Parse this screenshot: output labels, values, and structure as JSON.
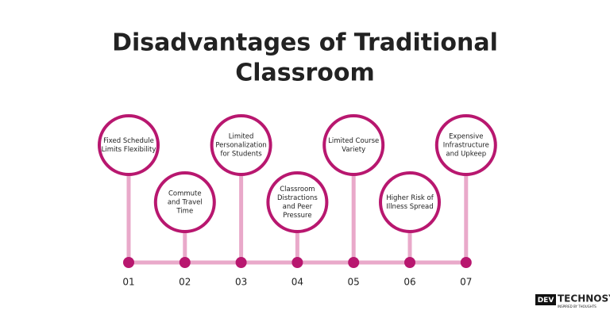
{
  "title": [
    "Disadvantages of Traditional",
    "Classroom"
  ],
  "items": [
    {
      "lines": [
        "Fixed Schedule",
        "Limits Flexibility"
      ],
      "number": "01"
    },
    {
      "lines": [
        "Commute",
        "and Travel",
        "Time"
      ],
      "number": "02"
    },
    {
      "lines": [
        "Limited",
        "Personalization",
        "for Students"
      ],
      "number": "03"
    },
    {
      "lines": [
        "Classroom",
        "Distractions",
        "and Peer",
        "Pressure"
      ],
      "number": "04"
    },
    {
      "lines": [
        "Limited Course",
        "Variety"
      ],
      "number": "05"
    },
    {
      "lines": [
        "Higher Risk of",
        "Illness Spread"
      ],
      "number": "06"
    },
    {
      "lines": [
        "Expensive",
        "Infrastructure",
        "and Upkeep"
      ],
      "number": "07"
    }
  ],
  "logo": {
    "mark": "DEV",
    "name": "TECHNOSYS",
    "tagline": "INSPIRED BY THOUGHTS"
  }
}
